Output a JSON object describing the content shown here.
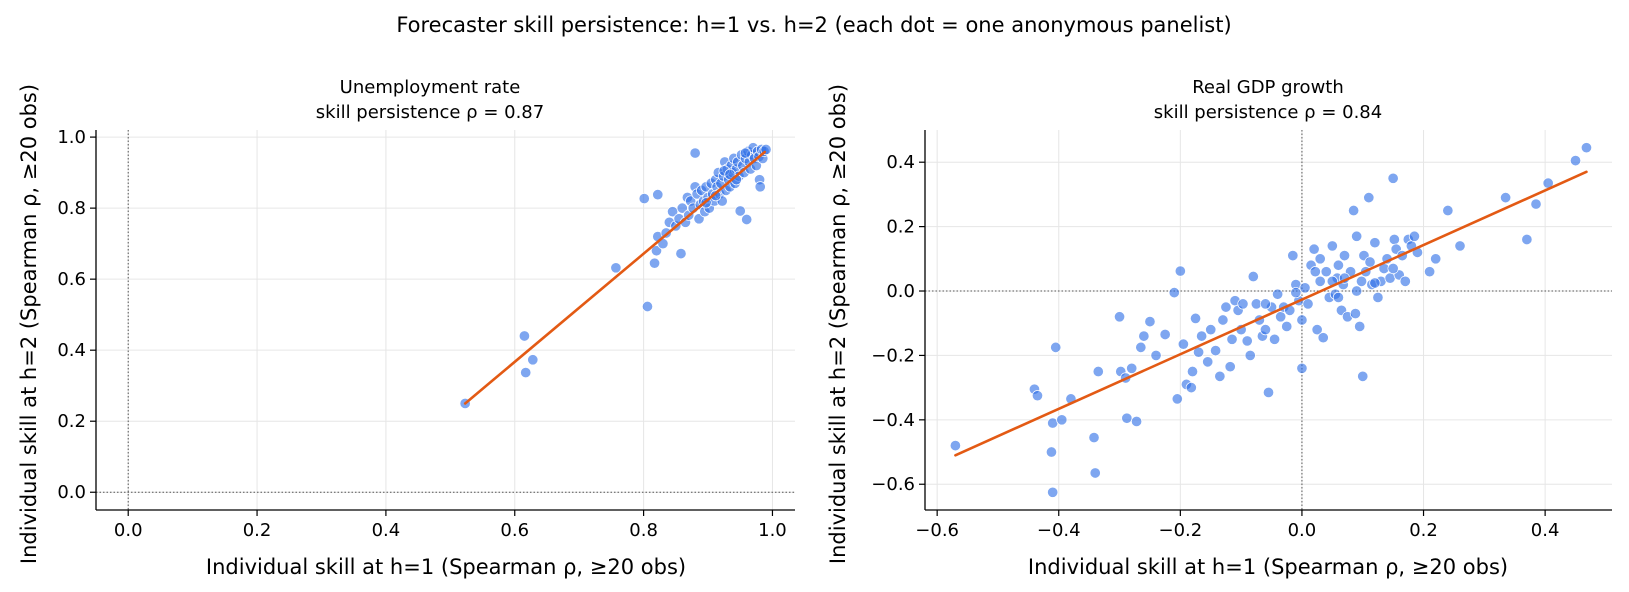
{
  "figure": {
    "suptitle": "Forecaster skill persistence: h=1 vs. h=2 (each dot = one anonymous panelist)"
  },
  "colors": {
    "points": "#2f6fe6",
    "fit_line": "#e35a14",
    "grid": "#e6e6e6",
    "reference_line": "#555555"
  },
  "chart_data": [
    {
      "type": "scatter",
      "title_line1": "Unemployment rate",
      "title_line2": "skill persistence ρ = 0.87",
      "xlabel": "Individual skill at h=1 (Spearman ρ, ≥20 obs)",
      "ylabel": "Individual skill at h=2 (Spearman ρ, ≥20 obs)",
      "xlim": [
        -0.05,
        1.035
      ],
      "ylim": [
        -0.05,
        1.02
      ],
      "xticks": [
        0.0,
        0.2,
        0.4,
        0.6,
        0.8,
        1.0
      ],
      "yticks": [
        0.0,
        0.2,
        0.4,
        0.6,
        0.8,
        1.0
      ],
      "tick_labels_x": [
        "0.0",
        "0.2",
        "0.4",
        "0.6",
        "0.8",
        "1.0"
      ],
      "tick_labels_y": [
        "0.0",
        "0.2",
        "0.4",
        "0.6",
        "0.8",
        "1.0"
      ],
      "grid": true,
      "reference_lines": {
        "x0": true,
        "y0": true
      },
      "fit_line": [
        [
          0.523,
          0.25
        ],
        [
          0.988,
          0.958
        ]
      ],
      "points": [
        [
          0.523,
          0.25
        ],
        [
          0.615,
          0.44
        ],
        [
          0.617,
          0.337
        ],
        [
          0.628,
          0.373
        ],
        [
          0.757,
          0.632
        ],
        [
          0.806,
          0.523
        ],
        [
          0.801,
          0.827
        ],
        [
          0.822,
          0.838
        ],
        [
          0.817,
          0.645
        ],
        [
          0.82,
          0.68
        ],
        [
          0.822,
          0.72
        ],
        [
          0.83,
          0.7
        ],
        [
          0.835,
          0.73
        ],
        [
          0.84,
          0.76
        ],
        [
          0.845,
          0.79
        ],
        [
          0.85,
          0.75
        ],
        [
          0.855,
          0.77
        ],
        [
          0.858,
          0.672
        ],
        [
          0.86,
          0.8
        ],
        [
          0.865,
          0.76
        ],
        [
          0.868,
          0.83
        ],
        [
          0.87,
          0.78
        ],
        [
          0.873,
          0.82
        ],
        [
          0.877,
          0.8
        ],
        [
          0.88,
          0.955
        ],
        [
          0.88,
          0.86
        ],
        [
          0.883,
          0.84
        ],
        [
          0.886,
          0.77
        ],
        [
          0.888,
          0.81
        ],
        [
          0.89,
          0.85
        ],
        [
          0.893,
          0.82
        ],
        [
          0.895,
          0.79
        ],
        [
          0.897,
          0.86
        ],
        [
          0.9,
          0.83
        ],
        [
          0.902,
          0.8
        ],
        [
          0.905,
          0.87
        ],
        [
          0.907,
          0.84
        ],
        [
          0.91,
          0.82
        ],
        [
          0.912,
          0.88
        ],
        [
          0.914,
          0.86
        ],
        [
          0.916,
          0.9
        ],
        [
          0.918,
          0.84
        ],
        [
          0.92,
          0.87
        ],
        [
          0.922,
          0.82
        ],
        [
          0.924,
          0.89
        ],
        [
          0.926,
          0.93
        ],
        [
          0.928,
          0.85
        ],
        [
          0.93,
          0.91
        ],
        [
          0.932,
          0.88
        ],
        [
          0.934,
          0.86
        ],
        [
          0.936,
          0.92
        ],
        [
          0.938,
          0.9
        ],
        [
          0.94,
          0.94
        ],
        [
          0.942,
          0.87
        ],
        [
          0.944,
          0.91
        ],
        [
          0.946,
          0.93
        ],
        [
          0.948,
          0.89
        ],
        [
          0.95,
          0.792
        ],
        [
          0.952,
          0.95
        ],
        [
          0.954,
          0.92
        ],
        [
          0.956,
          0.9
        ],
        [
          0.958,
          0.94
        ],
        [
          0.96,
          0.768
        ],
        [
          0.962,
          0.96
        ],
        [
          0.964,
          0.93
        ],
        [
          0.966,
          0.91
        ],
        [
          0.968,
          0.95
        ],
        [
          0.97,
          0.97
        ],
        [
          0.972,
          0.94
        ],
        [
          0.975,
          0.92
        ],
        [
          0.977,
          0.96
        ],
        [
          0.979,
          0.945
        ],
        [
          0.98,
          0.88
        ],
        [
          0.981,
          0.86
        ],
        [
          0.983,
          0.965
        ],
        [
          0.985,
          0.94
        ],
        [
          0.987,
          0.96
        ],
        [
          0.99,
          0.965
        ],
        [
          0.944,
          0.88
        ],
        [
          0.925,
          0.905
        ],
        [
          0.958,
          0.955
        ],
        [
          0.912,
          0.835
        ],
        [
          0.897,
          0.815
        ],
        [
          0.934,
          0.895
        ]
      ]
    },
    {
      "type": "scatter",
      "title_line1": "Real GDP growth",
      "title_line2": "skill persistence ρ = 0.84",
      "xlabel": "Individual skill at h=1 (Spearman ρ, ≥20 obs)",
      "ylabel": "Individual skill at h=2 (Spearman ρ, ≥20 obs)",
      "xlim": [
        -0.62,
        0.51
      ],
      "ylim": [
        -0.68,
        0.5
      ],
      "xticks": [
        -0.6,
        -0.4,
        -0.2,
        0.0,
        0.2,
        0.4
      ],
      "yticks": [
        -0.6,
        -0.4,
        -0.2,
        0.0,
        0.2,
        0.4
      ],
      "tick_labels_x": [
        "−0.6",
        "−0.4",
        "−0.2",
        "0.0",
        "0.2",
        "0.4"
      ],
      "tick_labels_y": [
        "−0.6",
        "−0.4",
        "−0.2",
        "0.0",
        "0.2",
        "0.4"
      ],
      "grid": true,
      "reference_lines": {
        "x0": true,
        "y0": true
      },
      "fit_line": [
        [
          -0.57,
          -0.51
        ],
        [
          0.468,
          0.37
        ]
      ],
      "points": [
        [
          -0.57,
          -0.48
        ],
        [
          -0.44,
          -0.305
        ],
        [
          -0.435,
          -0.325
        ],
        [
          -0.41,
          -0.625
        ],
        [
          -0.412,
          -0.5
        ],
        [
          -0.405,
          -0.175
        ],
        [
          -0.41,
          -0.41
        ],
        [
          -0.395,
          -0.4
        ],
        [
          -0.38,
          -0.335
        ],
        [
          -0.34,
          -0.565
        ],
        [
          -0.342,
          -0.455
        ],
        [
          -0.335,
          -0.25
        ],
        [
          -0.3,
          -0.08
        ],
        [
          -0.298,
          -0.25
        ],
        [
          -0.29,
          -0.27
        ],
        [
          -0.288,
          -0.395
        ],
        [
          -0.28,
          -0.24
        ],
        [
          -0.272,
          -0.405
        ],
        [
          -0.265,
          -0.175
        ],
        [
          -0.26,
          -0.14
        ],
        [
          -0.25,
          -0.095
        ],
        [
          -0.24,
          -0.2
        ],
        [
          -0.225,
          -0.135
        ],
        [
          -0.21,
          -0.005
        ],
        [
          -0.205,
          -0.335
        ],
        [
          -0.2,
          0.062
        ],
        [
          -0.195,
          -0.165
        ],
        [
          -0.19,
          -0.29
        ],
        [
          -0.182,
          -0.3
        ],
        [
          -0.18,
          -0.25
        ],
        [
          -0.175,
          -0.085
        ],
        [
          -0.17,
          -0.19
        ],
        [
          -0.165,
          -0.14
        ],
        [
          -0.155,
          -0.22
        ],
        [
          -0.15,
          -0.12
        ],
        [
          -0.142,
          -0.185
        ],
        [
          -0.135,
          -0.265
        ],
        [
          -0.13,
          -0.09
        ],
        [
          -0.125,
          -0.05
        ],
        [
          -0.118,
          -0.235
        ],
        [
          -0.115,
          -0.15
        ],
        [
          -0.11,
          -0.03
        ],
        [
          -0.105,
          -0.06
        ],
        [
          -0.1,
          -0.12
        ],
        [
          -0.097,
          -0.04
        ],
        [
          -0.09,
          -0.155
        ],
        [
          -0.085,
          -0.2
        ],
        [
          -0.08,
          0.045
        ],
        [
          -0.075,
          -0.04
        ],
        [
          -0.07,
          -0.09
        ],
        [
          -0.065,
          -0.14
        ],
        [
          -0.06,
          -0.12
        ],
        [
          -0.055,
          -0.315
        ],
        [
          -0.05,
          -0.05
        ],
        [
          -0.045,
          -0.15
        ],
        [
          -0.04,
          -0.01
        ],
        [
          -0.035,
          -0.08
        ],
        [
          -0.03,
          -0.05
        ],
        [
          -0.025,
          -0.11
        ],
        [
          -0.02,
          -0.06
        ],
        [
          -0.015,
          0.11
        ],
        [
          -0.01,
          0.02
        ],
        [
          -0.005,
          -0.03
        ],
        [
          0.0,
          -0.24
        ],
        [
          0.0,
          -0.09
        ],
        [
          0.005,
          0.01
        ],
        [
          0.01,
          -0.04
        ],
        [
          0.015,
          0.08
        ],
        [
          0.02,
          0.13
        ],
        [
          0.022,
          0.06
        ],
        [
          0.025,
          -0.12
        ],
        [
          0.03,
          0.03
        ],
        [
          0.035,
          -0.145
        ],
        [
          0.04,
          0.06
        ],
        [
          0.045,
          -0.02
        ],
        [
          0.05,
          0.14
        ],
        [
          0.055,
          -0.01
        ],
        [
          0.058,
          0.04
        ],
        [
          0.06,
          0.08
        ],
        [
          0.065,
          -0.06
        ],
        [
          0.068,
          0.02
        ],
        [
          0.07,
          0.11
        ],
        [
          0.075,
          -0.08
        ],
        [
          0.08,
          0.06
        ],
        [
          0.085,
          0.25
        ],
        [
          0.088,
          -0.07
        ],
        [
          0.09,
          0.0
        ],
        [
          0.095,
          -0.11
        ],
        [
          0.098,
          0.03
        ],
        [
          0.1,
          -0.265
        ],
        [
          0.102,
          0.11
        ],
        [
          0.105,
          0.06
        ],
        [
          0.11,
          0.29
        ],
        [
          0.112,
          0.09
        ],
        [
          0.115,
          0.02
        ],
        [
          0.12,
          0.15
        ],
        [
          0.125,
          -0.02
        ],
        [
          0.13,
          0.03
        ],
        [
          0.135,
          0.07
        ],
        [
          0.14,
          0.1
        ],
        [
          0.145,
          0.04
        ],
        [
          0.15,
          0.35
        ],
        [
          0.152,
          0.16
        ],
        [
          0.155,
          0.13
        ],
        [
          0.16,
          0.05
        ],
        [
          0.165,
          0.11
        ],
        [
          0.17,
          0.03
        ],
        [
          0.175,
          0.16
        ],
        [
          0.18,
          0.14
        ],
        [
          0.185,
          0.17
        ],
        [
          0.19,
          0.12
        ],
        [
          0.21,
          0.06
        ],
        [
          0.22,
          0.1
        ],
        [
          0.24,
          0.25
        ],
        [
          0.26,
          0.14
        ],
        [
          0.335,
          0.29
        ],
        [
          0.37,
          0.16
        ],
        [
          0.385,
          0.27
        ],
        [
          0.405,
          0.335
        ],
        [
          0.45,
          0.405
        ],
        [
          0.468,
          0.445
        ],
        [
          0.07,
          0.04
        ],
        [
          0.03,
          0.1
        ],
        [
          -0.01,
          -0.005
        ],
        [
          0.09,
          0.17
        ],
        [
          0.12,
          0.025
        ],
        [
          0.15,
          0.07
        ],
        [
          0.05,
          0.03
        ],
        [
          -0.06,
          -0.04
        ],
        [
          0.06,
          -0.02
        ]
      ]
    }
  ]
}
